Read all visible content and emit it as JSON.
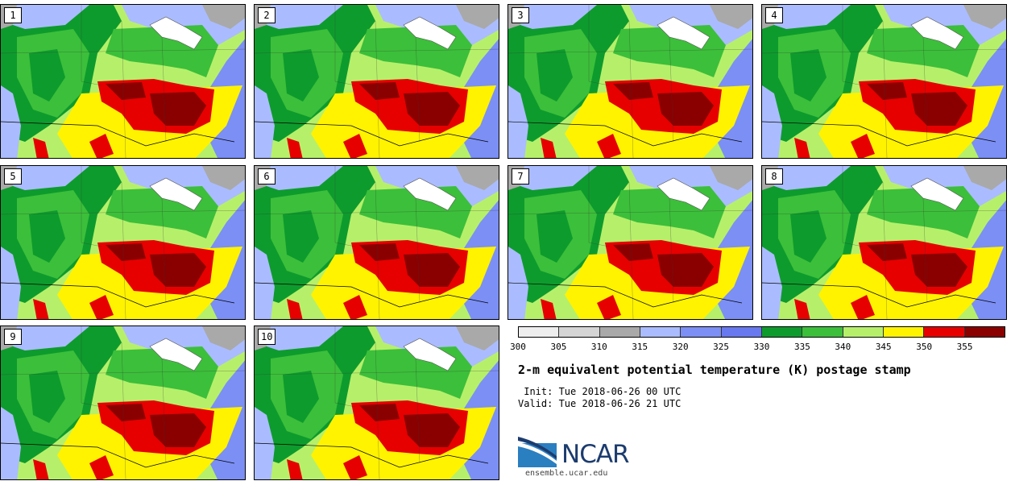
{
  "panels": [
    {
      "label": "1"
    },
    {
      "label": "2"
    },
    {
      "label": "3"
    },
    {
      "label": "4"
    },
    {
      "label": "5"
    },
    {
      "label": "6"
    },
    {
      "label": "7"
    },
    {
      "label": "8"
    },
    {
      "label": "9"
    },
    {
      "label": "10"
    }
  ],
  "colorbar": {
    "colors": [
      "#eeeeee",
      "#d5d5d5",
      "#a9a9a9",
      "#aabcff",
      "#7b8ff5",
      "#6879ef",
      "#0e9b2d",
      "#3cbf3a",
      "#b6f06a",
      "#fff300",
      "#e60000",
      "#8a0000"
    ],
    "ticks": [
      "300",
      "305",
      "310",
      "315",
      "320",
      "325",
      "330",
      "335",
      "340",
      "345",
      "350",
      "355"
    ]
  },
  "title": "2-m equivalent potential temperature (K) postage stamp",
  "init_text": " Init: Tue 2018-06-26 00 UTC",
  "valid_text": "Valid: Tue 2018-06-26 21 UTC",
  "logo": {
    "text": "NCAR",
    "brand_color": "#1c3c6e",
    "accent_color": "#2a7fc1"
  },
  "website": "ensemble.ucar.edu"
}
